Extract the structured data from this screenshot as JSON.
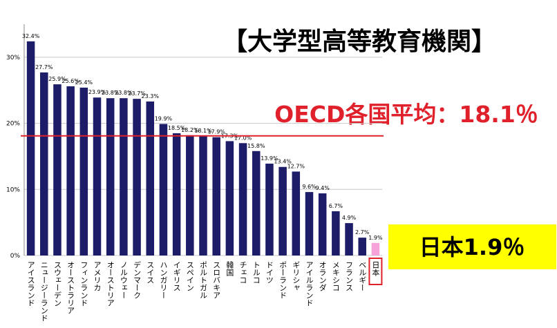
{
  "chart_data": {
    "type": "bar",
    "annotation_title": "【大学型高等教育機関】",
    "reference_label": "OECD各国平均：18.1％",
    "reference_line": 18.1,
    "reference_color": "#e0202a",
    "highlight_label": "日本1.9％",
    "categories": [
      "アイスランド",
      "ニュージーランド",
      "スウェーデン",
      "オーストラリア",
      "フィンランド",
      "アメリカ",
      "オーストリア",
      "ノルウェー",
      "デンマーク",
      "スイス",
      "ハンガリー",
      "イギリス",
      "スペイン",
      "ポルトガル",
      "スロバキア",
      "韓国",
      "チェコ",
      "トルコ",
      "ドイツ",
      "ポーランド",
      "ギリシャ",
      "アイルランド",
      "オランダ",
      "メキシコ",
      "フランス",
      "ベルギー",
      "日本"
    ],
    "values": [
      32.4,
      27.7,
      25.9,
      25.6,
      25.4,
      23.9,
      23.8,
      23.8,
      23.7,
      23.3,
      19.9,
      18.5,
      18.2,
      18.1,
      17.9,
      17.3,
      17.0,
      15.8,
      13.9,
      13.4,
      12.7,
      9.6,
      9.4,
      6.7,
      4.9,
      2.7,
      1.9
    ],
    "value_labels": [
      "32.4%",
      "27.7%",
      "25.9%",
      "25.6%",
      "25.4%",
      "23.9%",
      "23.8%",
      "23.8%",
      "23.7%",
      "23.3%",
      "19.9%",
      "18.5%",
      "18.2%",
      "18.1%",
      "17.9%",
      "17.3%",
      "17.0%",
      "15.8%",
      "13.9%",
      "13.4%",
      "12.7%",
      "9.6%",
      "9.4%",
      "6.7%",
      "4.9%",
      "2.7%",
      "1.9%"
    ],
    "colors": [
      "#1c1c68",
      "#1c1c68",
      "#1c1c68",
      "#1c1c68",
      "#1c1c68",
      "#1c1c68",
      "#1c1c68",
      "#1c1c68",
      "#1c1c68",
      "#1c1c68",
      "#1c1c68",
      "#1c1c68",
      "#1c1c68",
      "#1c1c68",
      "#1c1c68",
      "#1c1c68",
      "#1c1c68",
      "#1c1c68",
      "#1c1c68",
      "#1c1c68",
      "#1c1c68",
      "#1c1c68",
      "#1c1c68",
      "#1c1c68",
      "#1c1c68",
      "#1c1c68",
      "#f6a3da"
    ],
    "ylim": [
      0,
      35
    ],
    "yticks": [
      {
        "value": 0,
        "label": "0%"
      },
      {
        "value": 10,
        "label": "10%"
      },
      {
        "value": 20,
        "label": "20%"
      },
      {
        "value": 30,
        "label": "30%"
      }
    ],
    "grid": true
  }
}
